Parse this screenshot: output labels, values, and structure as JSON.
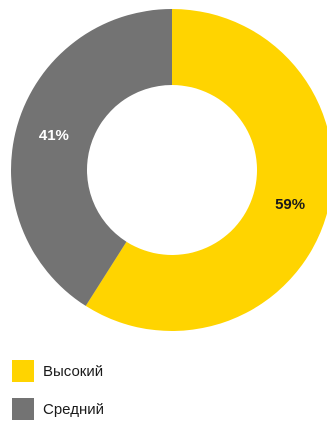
{
  "chart_data": {
    "type": "pie",
    "donut": true,
    "categories": [
      "Высокий",
      "Средний"
    ],
    "values": [
      59,
      41
    ],
    "value_labels": [
      "59%",
      "41%"
    ],
    "colors": [
      "#ffd400",
      "#737373"
    ],
    "label_colors": [
      "#1a1a1a",
      "#ffffff"
    ],
    "legend_position": "bottom-left"
  }
}
